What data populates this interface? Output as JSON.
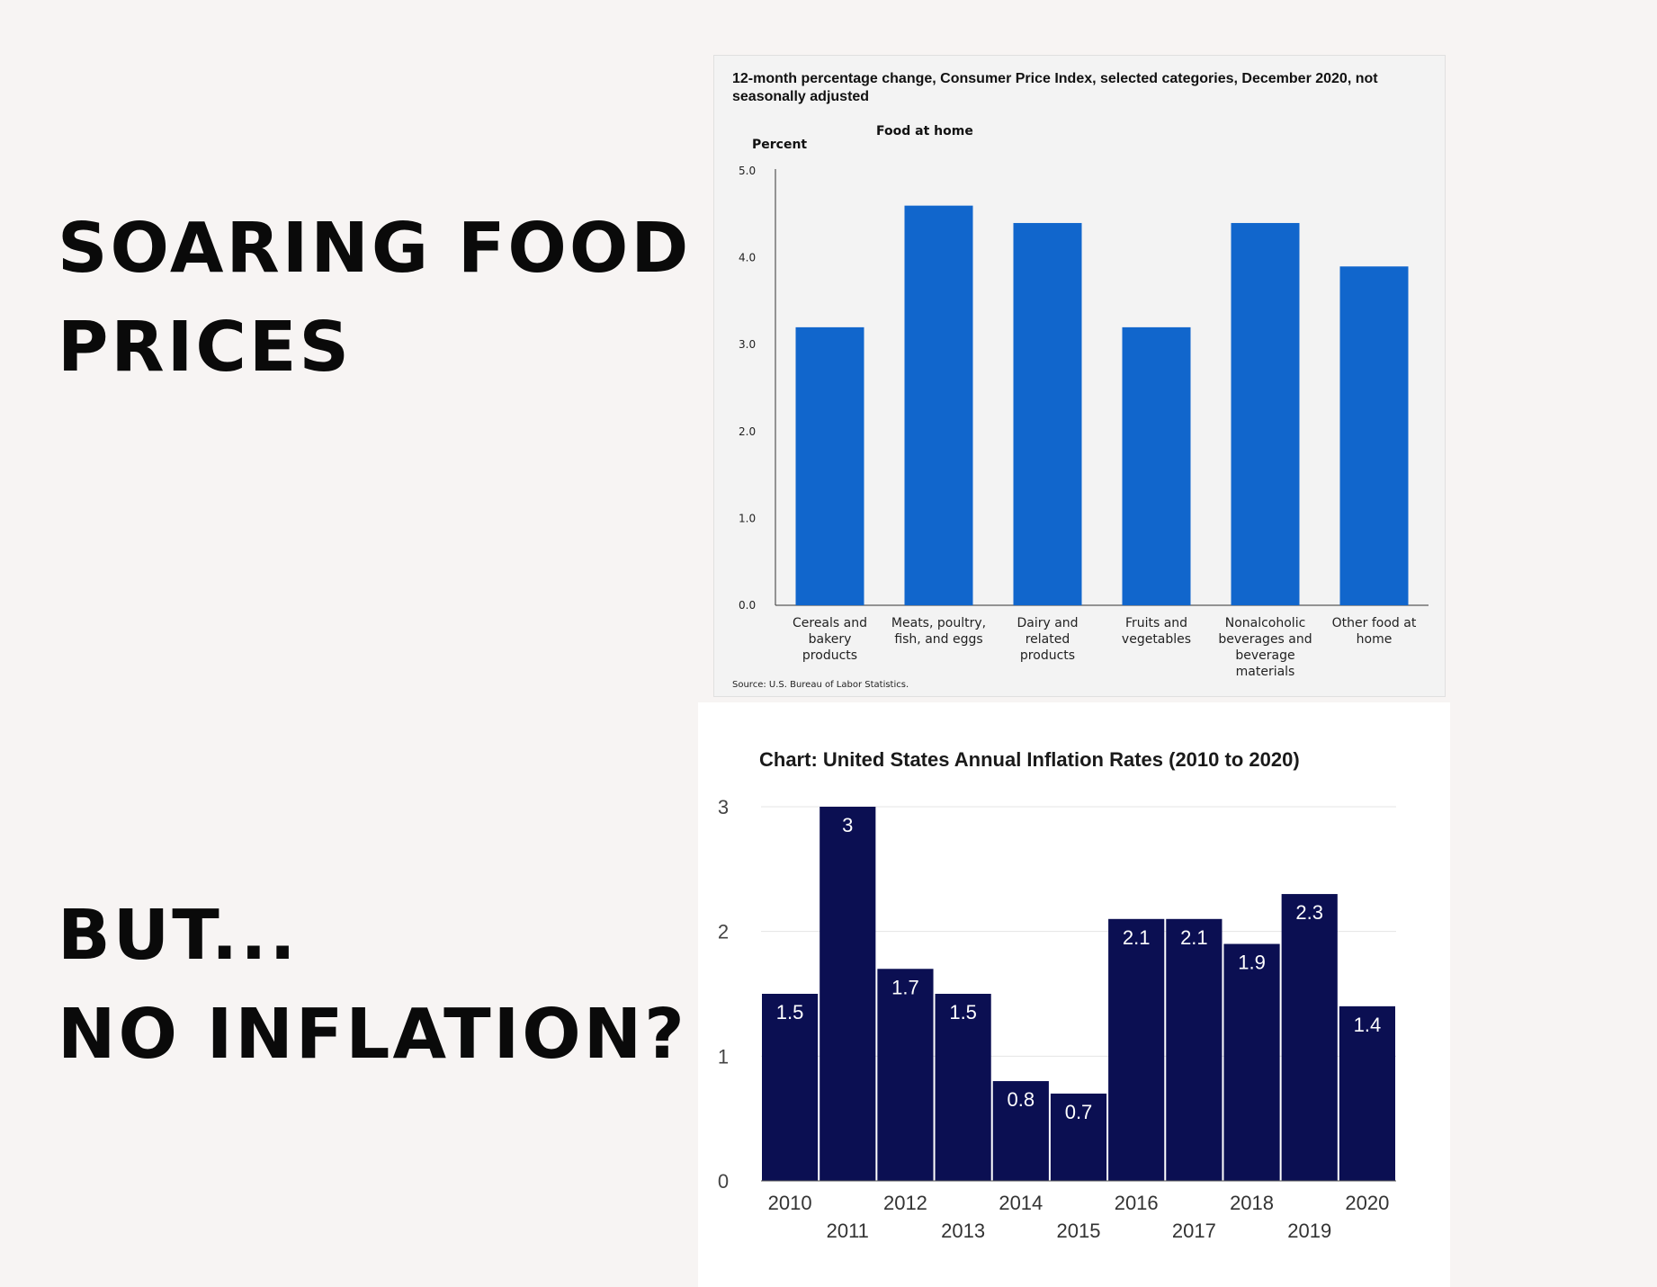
{
  "headlines": {
    "top": [
      "SOARING FOOD",
      "PRICES"
    ],
    "bottom": [
      "BUT...",
      "NO INFLATION?"
    ]
  },
  "chart_data": [
    {
      "type": "bar",
      "title": "12-month percentage change, Consumer Price Index, selected categories, December 2020, not seasonally adjusted",
      "subtitle": "Food at home",
      "ylabel": "Percent",
      "xlabel": "",
      "ylim": [
        0,
        5
      ],
      "yticks": [
        "0.0",
        "1.0",
        "2.0",
        "3.0",
        "4.0",
        "5.0"
      ],
      "categories": [
        [
          "Cereals and",
          "bakery",
          "products"
        ],
        [
          "Meats, poultry,",
          "fish, and eggs"
        ],
        [
          "Dairy and",
          "related",
          "products"
        ],
        [
          "Fruits and",
          "vegetables"
        ],
        [
          "Nonalcoholic",
          "beverages and",
          "beverage",
          "materials"
        ],
        [
          "Other food at",
          "home"
        ]
      ],
      "values": [
        3.2,
        4.6,
        4.4,
        3.2,
        4.4,
        3.9
      ],
      "source": "Source: U.S. Bureau of Labor Statistics.",
      "bar_color": "#1166cc",
      "grid": false
    },
    {
      "type": "bar",
      "title": "Chart: United States Annual Inflation Rates (2010 to 2020)",
      "xlabel": "",
      "ylabel": "",
      "ylim": [
        0,
        3
      ],
      "yticks": [
        "0",
        "1",
        "2",
        "3"
      ],
      "categories": [
        "2010",
        "2011",
        "2012",
        "2013",
        "2014",
        "2015",
        "2016",
        "2017",
        "2018",
        "2019",
        "2020"
      ],
      "values": [
        1.5,
        3,
        1.7,
        1.5,
        0.8,
        0.7,
        2.1,
        2.1,
        1.9,
        2.3,
        1.4
      ],
      "labels": [
        "1.5",
        "3",
        "1.7",
        "1.5",
        "0.8",
        "0.7",
        "2.1",
        "2.1",
        "1.9",
        "2.3",
        "1.4"
      ],
      "bar_color": "#0b0f52",
      "grid": true
    }
  ]
}
